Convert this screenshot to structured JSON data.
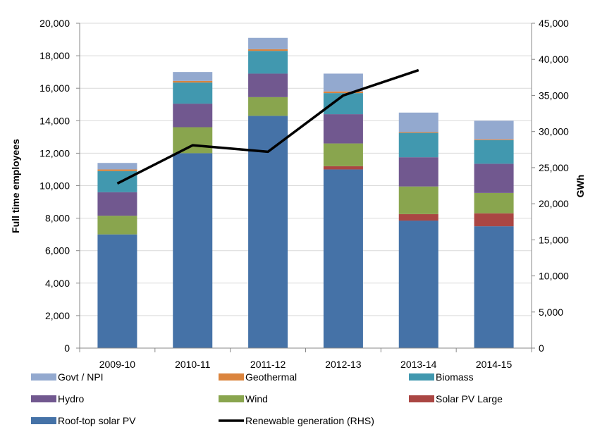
{
  "chart_data": {
    "type": "bar",
    "stacked": true,
    "categories": [
      "2009-10",
      "2010-11",
      "2011-12",
      "2012-13",
      "2013-14",
      "2014-15"
    ],
    "ylabel": "Full time employees",
    "y2label": "GWh",
    "ylim": [
      0,
      20000
    ],
    "y2lim": [
      0,
      45000
    ],
    "yticks": [
      "0",
      "2,000",
      "4,000",
      "6,000",
      "8,000",
      "10,000",
      "12,000",
      "14,000",
      "16,000",
      "18,000",
      "20,000"
    ],
    "y2ticks": [
      "0",
      "5,000",
      "10,000",
      "15,000",
      "20,000",
      "25,000",
      "30,000",
      "35,000",
      "40,000",
      "45,000"
    ],
    "grid": true,
    "legend_position": "bottom",
    "series": [
      {
        "name": "Roof-top solar PV",
        "color": "#4572A7",
        "values": [
          7000,
          12000,
          14300,
          11000,
          7850,
          7500
        ]
      },
      {
        "name": "Solar PV Large",
        "color": "#AA4643",
        "values": [
          0,
          0,
          0,
          200,
          400,
          800
        ]
      },
      {
        "name": "Wind",
        "color": "#89A54E",
        "values": [
          1150,
          1600,
          1150,
          1400,
          1700,
          1250
        ]
      },
      {
        "name": "Hydro",
        "color": "#71588F",
        "values": [
          1450,
          1450,
          1450,
          1800,
          1800,
          1800
        ]
      },
      {
        "name": "Biomass",
        "color": "#4198AF",
        "values": [
          1300,
          1300,
          1400,
          1300,
          1500,
          1450
        ]
      },
      {
        "name": "Geothermal",
        "color": "#DB843D",
        "values": [
          100,
          100,
          100,
          100,
          50,
          50
        ]
      },
      {
        "name": "Govt / NPI",
        "color": "#93A9CF",
        "values": [
          400,
          550,
          700,
          1100,
          1200,
          1150
        ]
      }
    ],
    "line_series": {
      "name": "Renewable generation (RHS)",
      "color": "#000000",
      "axis": "right",
      "x": [
        "2009-10",
        "2010-11",
        "2011-12",
        "2012-13",
        "2013-14"
      ],
      "values": [
        22800,
        28100,
        27200,
        35000,
        38500
      ]
    }
  },
  "legend": {
    "items": [
      {
        "label": "Govt / NPI",
        "color": "#93A9CF",
        "kind": "swatch"
      },
      {
        "label": "Geothermal",
        "color": "#DB843D",
        "kind": "swatch"
      },
      {
        "label": "Biomass",
        "color": "#4198AF",
        "kind": "swatch"
      },
      {
        "label": "Hydro",
        "color": "#71588F",
        "kind": "swatch"
      },
      {
        "label": "Wind",
        "color": "#89A54E",
        "kind": "swatch"
      },
      {
        "label": "Solar PV Large",
        "color": "#AA4643",
        "kind": "swatch"
      },
      {
        "label": "Roof-top solar PV",
        "color": "#4572A7",
        "kind": "swatch"
      },
      {
        "label": "Renewable generation (RHS)",
        "color": "#000000",
        "kind": "line"
      }
    ]
  }
}
